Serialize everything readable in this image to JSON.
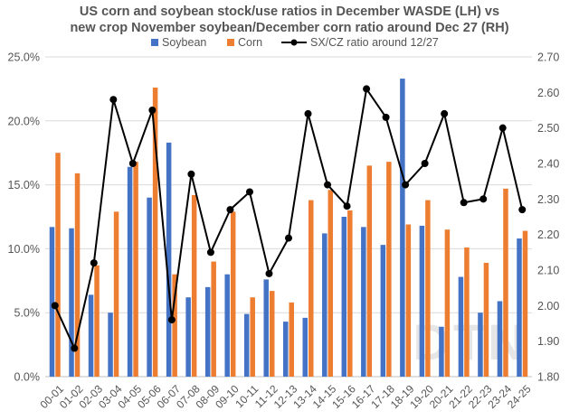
{
  "chart_data": {
    "type": "bar",
    "title_lines": [
      "US corn and soybean stock/use ratios in December WASDE (LH) vs",
      "new crop November soybean/December corn ratio around Dec 27 (RH)"
    ],
    "categories": [
      "00-01",
      "01-02",
      "02-03",
      "03-04",
      "04-05",
      "05-06",
      "06-07",
      "07-08",
      "08-09",
      "09-10",
      "10-11",
      "11-12",
      "12-13",
      "13-14",
      "14-15",
      "15-16",
      "16-17",
      "17-18",
      "18-19",
      "19-20",
      "20-21",
      "21-22",
      "22-23",
      "23-24",
      "24-25"
    ],
    "series": [
      {
        "name": "Soybean",
        "type": "bar",
        "axis": "left",
        "color": "#4472C4",
        "values": [
          11.7,
          11.6,
          6.4,
          5.0,
          16.4,
          14.0,
          18.3,
          6.2,
          7.0,
          8.0,
          4.9,
          7.6,
          4.3,
          4.6,
          11.2,
          12.5,
          11.7,
          10.3,
          23.3,
          11.8,
          3.9,
          7.8,
          5.0,
          5.9,
          10.8
        ]
      },
      {
        "name": "Corn",
        "type": "bar",
        "axis": "left",
        "color": "#ED7D31",
        "values": [
          17.5,
          15.9,
          8.7,
          12.9,
          16.8,
          22.6,
          8.0,
          14.2,
          9.0,
          12.9,
          6.2,
          6.7,
          5.8,
          13.8,
          14.6,
          13.0,
          16.5,
          16.8,
          11.9,
          13.8,
          11.5,
          10.1,
          8.9,
          14.7,
          11.4
        ]
      },
      {
        "name": "SX/CZ ratio around 12/27",
        "type": "line",
        "axis": "right",
        "color": "#000000",
        "values": [
          2.0,
          1.88,
          2.12,
          2.58,
          2.4,
          2.55,
          1.96,
          2.37,
          2.15,
          2.27,
          2.32,
          2.09,
          2.19,
          2.54,
          2.34,
          2.28,
          2.61,
          2.53,
          2.34,
          2.4,
          2.54,
          2.29,
          2.3,
          2.5,
          2.27
        ]
      }
    ],
    "y_left": {
      "min": 0,
      "max": 25,
      "ticks": [
        "0.0%",
        "5.0%",
        "10.0%",
        "15.0%",
        "20.0%",
        "25.0%"
      ]
    },
    "y_right": {
      "min": 1.8,
      "max": 2.7,
      "ticks": [
        "1.80",
        "1.90",
        "2.00",
        "2.10",
        "2.20",
        "2.30",
        "2.40",
        "2.50",
        "2.60",
        "2.70"
      ]
    },
    "grid": "horizontal",
    "legend_position": "top",
    "watermark": "DTN"
  }
}
